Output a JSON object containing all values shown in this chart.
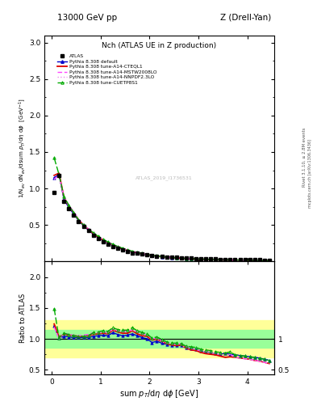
{
  "title_top": "13000 GeV pp",
  "title_right": "Z (Drell-Yan)",
  "plot_title": "Nch (ATLAS UE in Z production)",
  "xlabel": "sum $p_{T}$/d$\\eta$ d$\\phi$ [GeV]",
  "ylabel_main": "1/N$_{ev}$ dN$_{ev}$/dsum $p_{T}$/d$\\eta$ d$\\phi$  [GeV$^{-1}$]",
  "ylabel_ratio": "Ratio to ATLAS",
  "right_label1": "Rivet 3.1.10, ≥ 2.8M events",
  "right_label2": "mcplots.cern.ch [arXiv:1306.3436]",
  "watermark": "ATLAS_2019_I1736531",
  "xlim": [
    -0.15,
    4.55
  ],
  "ylim_main": [
    0.0,
    3.1
  ],
  "ylim_ratio": [
    0.42,
    2.25
  ],
  "atlas_x": [
    0.05,
    0.15,
    0.25,
    0.35,
    0.45,
    0.55,
    0.65,
    0.75,
    0.85,
    0.95,
    1.05,
    1.15,
    1.25,
    1.35,
    1.45,
    1.55,
    1.65,
    1.75,
    1.85,
    1.95,
    2.05,
    2.15,
    2.25,
    2.35,
    2.45,
    2.55,
    2.65,
    2.75,
    2.85,
    2.95,
    3.05,
    3.15,
    3.25,
    3.35,
    3.45,
    3.55,
    3.65,
    3.75,
    3.85,
    3.95,
    4.05,
    4.15,
    4.25,
    4.35,
    4.45
  ],
  "atlas_y": [
    0.95,
    1.18,
    0.82,
    0.72,
    0.64,
    0.55,
    0.48,
    0.42,
    0.36,
    0.31,
    0.27,
    0.24,
    0.2,
    0.18,
    0.16,
    0.14,
    0.12,
    0.11,
    0.1,
    0.09,
    0.085,
    0.075,
    0.07,
    0.065,
    0.06,
    0.055,
    0.05,
    0.048,
    0.045,
    0.042,
    0.04,
    0.038,
    0.036,
    0.034,
    0.032,
    0.03,
    0.028,
    0.027,
    0.026,
    0.025,
    0.024,
    0.023,
    0.022,
    0.021,
    0.02
  ],
  "atlas_yerr": [
    0.02,
    0.03,
    0.02,
    0.015,
    0.012,
    0.01,
    0.008,
    0.007,
    0.006,
    0.005,
    0.004,
    0.004,
    0.003,
    0.003,
    0.003,
    0.003,
    0.002,
    0.002,
    0.002,
    0.002,
    0.002,
    0.001,
    0.001,
    0.001,
    0.001,
    0.001,
    0.001,
    0.001,
    0.001,
    0.001,
    0.001,
    0.001,
    0.001,
    0.001,
    0.001,
    0.001,
    0.001,
    0.001,
    0.001,
    0.001,
    0.001,
    0.001,
    0.001,
    0.001,
    0.001
  ],
  "py_default_x": [
    0.05,
    0.15,
    0.25,
    0.35,
    0.45,
    0.55,
    0.65,
    0.75,
    0.85,
    0.95,
    1.05,
    1.15,
    1.25,
    1.35,
    1.45,
    1.55,
    1.65,
    1.75,
    1.85,
    1.95,
    2.05,
    2.15,
    2.25,
    2.35,
    2.45,
    2.55,
    2.65,
    2.75,
    2.85,
    2.95,
    3.05,
    3.15,
    3.25,
    3.35,
    3.45,
    3.55,
    3.65,
    3.75,
    3.85,
    3.95,
    4.05,
    4.15,
    4.25,
    4.35,
    4.45
  ],
  "py_default_y": [
    1.15,
    1.19,
    0.85,
    0.74,
    0.65,
    0.56,
    0.49,
    0.43,
    0.375,
    0.325,
    0.285,
    0.252,
    0.22,
    0.192,
    0.168,
    0.148,
    0.13,
    0.115,
    0.102,
    0.09,
    0.08,
    0.072,
    0.065,
    0.059,
    0.054,
    0.049,
    0.045,
    0.041,
    0.038,
    0.035,
    0.032,
    0.03,
    0.028,
    0.026,
    0.024,
    0.023,
    0.021,
    0.02,
    0.019,
    0.018,
    0.017,
    0.016,
    0.015,
    0.014,
    0.013
  ],
  "py_cteq_x": [
    0.05,
    0.15,
    0.25,
    0.35,
    0.45,
    0.55,
    0.65,
    0.75,
    0.85,
    0.95,
    1.05,
    1.15,
    1.25,
    1.35,
    1.45,
    1.55,
    1.65,
    1.75,
    1.85,
    1.95,
    2.05,
    2.15,
    2.25,
    2.35,
    2.45,
    2.55,
    2.65,
    2.75,
    2.85,
    2.95,
    3.05,
    3.15,
    3.25,
    3.35,
    3.45,
    3.55,
    3.65,
    3.75,
    3.85,
    3.95,
    4.05,
    4.15,
    4.25,
    4.35,
    4.45
  ],
  "py_cteq_y": [
    1.18,
    1.21,
    0.88,
    0.76,
    0.67,
    0.57,
    0.5,
    0.44,
    0.385,
    0.335,
    0.295,
    0.26,
    0.228,
    0.2,
    0.175,
    0.153,
    0.135,
    0.119,
    0.105,
    0.094,
    0.083,
    0.074,
    0.067,
    0.06,
    0.054,
    0.049,
    0.045,
    0.041,
    0.037,
    0.034,
    0.031,
    0.029,
    0.027,
    0.025,
    0.023,
    0.021,
    0.02,
    0.019,
    0.018,
    0.017,
    0.016,
    0.015,
    0.014,
    0.013,
    0.012
  ],
  "py_mstw_x": [
    0.05,
    0.15,
    0.25,
    0.35,
    0.45,
    0.55,
    0.65,
    0.75,
    0.85,
    0.95,
    1.05,
    1.15,
    1.25,
    1.35,
    1.45,
    1.55,
    1.65,
    1.75,
    1.85,
    1.95,
    2.05,
    2.15,
    2.25,
    2.35,
    2.45,
    2.55,
    2.65,
    2.75,
    2.85,
    2.95,
    3.05,
    3.15,
    3.25,
    3.35,
    3.45,
    3.55,
    3.65,
    3.75,
    3.85,
    3.95,
    4.05,
    4.15,
    4.25,
    4.35,
    4.45
  ],
  "py_mstw_y": [
    1.13,
    1.18,
    0.89,
    0.77,
    0.68,
    0.58,
    0.51,
    0.45,
    0.395,
    0.342,
    0.3,
    0.265,
    0.232,
    0.204,
    0.179,
    0.157,
    0.138,
    0.122,
    0.108,
    0.096,
    0.085,
    0.076,
    0.068,
    0.061,
    0.055,
    0.05,
    0.046,
    0.042,
    0.038,
    0.035,
    0.032,
    0.03,
    0.028,
    0.026,
    0.024,
    0.022,
    0.021,
    0.019,
    0.018,
    0.017,
    0.016,
    0.015,
    0.014,
    0.013,
    0.012
  ],
  "py_nnpdf_x": [
    0.05,
    0.15,
    0.25,
    0.35,
    0.45,
    0.55,
    0.65,
    0.75,
    0.85,
    0.95,
    1.05,
    1.15,
    1.25,
    1.35,
    1.45,
    1.55,
    1.65,
    1.75,
    1.85,
    1.95,
    2.05,
    2.15,
    2.25,
    2.35,
    2.45,
    2.55,
    2.65,
    2.75,
    2.85,
    2.95,
    3.05,
    3.15,
    3.25,
    3.35,
    3.45,
    3.55,
    3.65,
    3.75,
    3.85,
    3.95,
    4.05,
    4.15,
    4.25,
    4.35,
    4.45
  ],
  "py_nnpdf_y": [
    1.12,
    1.17,
    0.88,
    0.76,
    0.675,
    0.575,
    0.505,
    0.443,
    0.39,
    0.338,
    0.297,
    0.262,
    0.23,
    0.202,
    0.177,
    0.155,
    0.137,
    0.121,
    0.107,
    0.095,
    0.084,
    0.075,
    0.067,
    0.06,
    0.055,
    0.05,
    0.045,
    0.041,
    0.038,
    0.035,
    0.032,
    0.03,
    0.028,
    0.026,
    0.024,
    0.022,
    0.021,
    0.019,
    0.018,
    0.017,
    0.016,
    0.015,
    0.014,
    0.013,
    0.012
  ],
  "py_cuetp_x": [
    0.05,
    0.15,
    0.25,
    0.35,
    0.45,
    0.55,
    0.65,
    0.75,
    0.85,
    0.95,
    1.05,
    1.15,
    1.25,
    1.35,
    1.45,
    1.55,
    1.65,
    1.75,
    1.85,
    1.95,
    2.05,
    2.15,
    2.25,
    2.35,
    2.45,
    2.55,
    2.65,
    2.75,
    2.85,
    2.95,
    3.05,
    3.15,
    3.25,
    3.35,
    3.45,
    3.55,
    3.65,
    3.75,
    3.85,
    3.95,
    4.05,
    4.15,
    4.25,
    4.35,
    4.45
  ],
  "py_cuetp_y": [
    1.42,
    1.19,
    0.89,
    0.77,
    0.67,
    0.57,
    0.5,
    0.44,
    0.395,
    0.345,
    0.305,
    0.268,
    0.235,
    0.207,
    0.182,
    0.16,
    0.141,
    0.124,
    0.11,
    0.097,
    0.086,
    0.077,
    0.069,
    0.062,
    0.056,
    0.051,
    0.046,
    0.042,
    0.039,
    0.036,
    0.033,
    0.031,
    0.029,
    0.027,
    0.025,
    0.023,
    0.022,
    0.02,
    0.019,
    0.018,
    0.017,
    0.016,
    0.015,
    0.014,
    0.013
  ],
  "ratio_default": [
    1.21,
    1.01,
    1.04,
    1.03,
    1.02,
    1.02,
    1.02,
    1.02,
    1.04,
    1.05,
    1.06,
    1.05,
    1.1,
    1.07,
    1.05,
    1.06,
    1.08,
    1.05,
    1.02,
    1.0,
    0.94,
    0.96,
    0.93,
    0.91,
    0.9,
    0.89,
    0.9,
    0.85,
    0.84,
    0.83,
    0.8,
    0.79,
    0.78,
    0.76,
    0.75,
    0.77,
    0.75,
    0.74,
    0.73,
    0.72,
    0.71,
    0.7,
    0.69,
    0.67,
    0.65
  ],
  "ratio_cteq": [
    1.24,
    1.03,
    1.07,
    1.06,
    1.05,
    1.04,
    1.04,
    1.05,
    1.07,
    1.08,
    1.09,
    1.08,
    1.14,
    1.11,
    1.09,
    1.09,
    1.13,
    1.08,
    1.05,
    1.04,
    0.98,
    0.99,
    0.96,
    0.92,
    0.9,
    0.89,
    0.9,
    0.85,
    0.82,
    0.81,
    0.78,
    0.76,
    0.75,
    0.74,
    0.72,
    0.7,
    0.71,
    0.7,
    0.69,
    0.68,
    0.67,
    0.65,
    0.64,
    0.62,
    0.6
  ],
  "ratio_mstw": [
    1.19,
    1.0,
    1.09,
    1.07,
    1.06,
    1.05,
    1.06,
    1.07,
    1.1,
    1.1,
    1.11,
    1.1,
    1.16,
    1.13,
    1.12,
    1.12,
    1.15,
    1.11,
    1.08,
    1.07,
    1.0,
    1.01,
    0.97,
    0.94,
    0.92,
    0.91,
    0.92,
    0.88,
    0.84,
    0.83,
    0.8,
    0.79,
    0.78,
    0.76,
    0.75,
    0.73,
    0.75,
    0.7,
    0.69,
    0.68,
    0.67,
    0.65,
    0.64,
    0.62,
    0.6
  ],
  "ratio_nnpdf": [
    1.18,
    0.99,
    1.07,
    1.06,
    1.05,
    1.05,
    1.05,
    1.05,
    1.08,
    1.09,
    1.1,
    1.09,
    1.15,
    1.12,
    1.11,
    1.11,
    1.14,
    1.1,
    1.07,
    1.06,
    0.99,
    1.0,
    0.96,
    0.92,
    0.92,
    0.91,
    0.9,
    0.85,
    0.84,
    0.83,
    0.8,
    0.79,
    0.78,
    0.76,
    0.75,
    0.73,
    0.75,
    0.7,
    0.69,
    0.68,
    0.67,
    0.65,
    0.64,
    0.62,
    0.6
  ],
  "ratio_cuetp": [
    1.49,
    1.01,
    1.09,
    1.07,
    1.05,
    1.04,
    1.04,
    1.05,
    1.1,
    1.11,
    1.13,
    1.12,
    1.18,
    1.15,
    1.14,
    1.14,
    1.18,
    1.13,
    1.1,
    1.08,
    1.01,
    1.03,
    0.99,
    0.95,
    0.93,
    0.93,
    0.92,
    0.88,
    0.87,
    0.86,
    0.83,
    0.82,
    0.81,
    0.79,
    0.78,
    0.77,
    0.79,
    0.74,
    0.73,
    0.72,
    0.71,
    0.7,
    0.68,
    0.67,
    0.65
  ],
  "color_atlas": "#000000",
  "color_default": "#0000cc",
  "color_cteq": "#dd0000",
  "color_mstw": "#ff44ff",
  "color_nnpdf": "#ee88ee",
  "color_cuetp": "#00aa00",
  "bg_color": "#ffffff",
  "band_color_yellow": "#ffff99",
  "band_color_green": "#99ff99"
}
